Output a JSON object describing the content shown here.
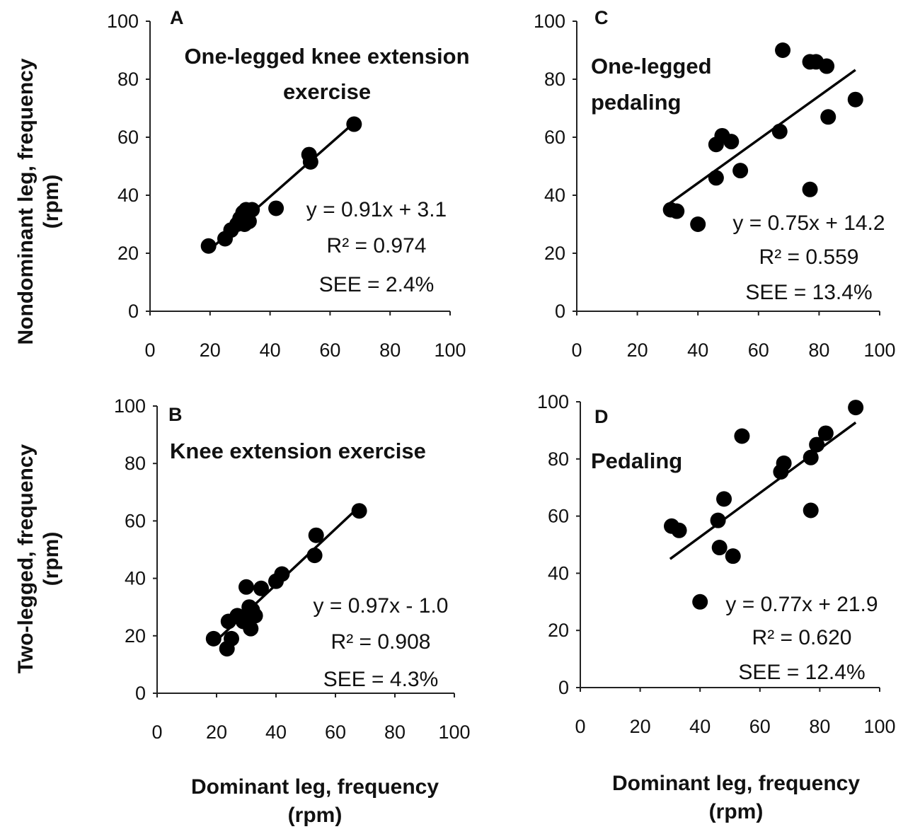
{
  "figure": {
    "y_label_top": [
      "Nondominant  leg, frequency",
      "(rpm)"
    ],
    "y_label_bottom": [
      "Two-legged, frequency",
      "(rpm)"
    ],
    "x_label_bottom_left": [
      "Dominant leg, frequency",
      "(rpm)"
    ],
    "x_label_bottom_right": [
      "Dominant leg, frequency",
      "(rpm)"
    ]
  },
  "chart_data": [
    {
      "id": "A",
      "type": "scatter",
      "letter": "A",
      "title": [
        "One-legged knee extension",
        "exercise"
      ],
      "xlim": [
        0,
        100
      ],
      "ylim": [
        0,
        100
      ],
      "xticks": [
        0,
        20,
        40,
        60,
        80,
        100
      ],
      "yticks": [
        0,
        20,
        40,
        60,
        80,
        100
      ],
      "equation": "y = 0.91x + 3.1",
      "r2": "R² = 0.974",
      "see": "SEE = 2.4%",
      "fit": {
        "slope": 0.91,
        "intercept": 3.1,
        "x_range": [
          20,
          68
        ]
      },
      "points": [
        [
          19.5,
          22.5
        ],
        [
          25,
          25
        ],
        [
          27,
          28
        ],
        [
          29,
          30
        ],
        [
          30,
          32
        ],
        [
          31,
          34
        ],
        [
          31.5,
          30
        ],
        [
          32,
          35
        ],
        [
          33,
          31
        ],
        [
          34,
          35
        ],
        [
          42,
          35.5
        ],
        [
          53,
          54
        ],
        [
          53.5,
          51.5
        ],
        [
          68,
          64.5
        ]
      ]
    },
    {
      "id": "B",
      "type": "scatter",
      "letter": "B",
      "title": [
        "Knee extension exercise"
      ],
      "xlim": [
        0,
        100
      ],
      "ylim": [
        0,
        100
      ],
      "xticks": [
        0,
        20,
        40,
        60,
        80,
        100
      ],
      "yticks": [
        0,
        20,
        40,
        60,
        80,
        100
      ],
      "equation": "y = 0.97x - 1.0",
      "r2": "R² = 0.908",
      "see": "SEE = 4.3%",
      "fit": {
        "slope": 0.97,
        "intercept": -1.0,
        "x_range": [
          20,
          68
        ]
      },
      "points": [
        [
          19,
          19
        ],
        [
          23.5,
          15.5
        ],
        [
          24,
          25
        ],
        [
          25,
          19
        ],
        [
          27,
          27
        ],
        [
          29,
          25
        ],
        [
          30,
          37
        ],
        [
          31,
          30
        ],
        [
          31.5,
          22.5
        ],
        [
          32,
          29
        ],
        [
          33,
          27
        ],
        [
          35,
          36.5
        ],
        [
          40,
          39
        ],
        [
          42,
          41.5
        ],
        [
          53,
          48
        ],
        [
          53.5,
          55
        ],
        [
          68,
          63.5
        ]
      ]
    },
    {
      "id": "C",
      "type": "scatter",
      "letter": "C",
      "title": [
        "One-legged",
        "pedaling"
      ],
      "xlim": [
        0,
        100
      ],
      "ylim": [
        0,
        100
      ],
      "xticks": [
        0,
        20,
        40,
        60,
        80,
        100
      ],
      "yticks": [
        0,
        20,
        40,
        60,
        80,
        100
      ],
      "equation": "y = 0.75x + 14.2",
      "r2": "R² = 0.559",
      "see": "SEE = 13.4%",
      "fit": {
        "slope": 0.75,
        "intercept": 14.2,
        "x_range": [
          30,
          92
        ]
      },
      "points": [
        [
          31,
          35
        ],
        [
          33,
          34.5
        ],
        [
          40,
          30
        ],
        [
          46,
          46
        ],
        [
          46,
          57.5
        ],
        [
          48,
          60.5
        ],
        [
          51,
          58.5
        ],
        [
          54,
          48.5
        ],
        [
          67,
          62
        ],
        [
          68,
          90
        ],
        [
          77,
          86
        ],
        [
          77,
          42
        ],
        [
          79,
          86
        ],
        [
          82.5,
          84.5
        ],
        [
          83,
          67
        ],
        [
          92,
          73
        ]
      ]
    },
    {
      "id": "D",
      "type": "scatter",
      "letter": "D",
      "title": [
        "Pedaling"
      ],
      "xlim": [
        0,
        100
      ],
      "ylim": [
        0,
        100
      ],
      "xticks": [
        0,
        20,
        40,
        60,
        80,
        100
      ],
      "yticks": [
        0,
        20,
        40,
        60,
        80,
        100
      ],
      "equation": "y = 0.77x + 21.9",
      "r2": "R² = 0.620",
      "see": "SEE = 12.4%",
      "fit": {
        "slope": 0.77,
        "intercept": 21.9,
        "x_range": [
          30,
          92
        ]
      },
      "points": [
        [
          30.5,
          56.5
        ],
        [
          33,
          55
        ],
        [
          40,
          30
        ],
        [
          46,
          58.5
        ],
        [
          46.5,
          49
        ],
        [
          48,
          66
        ],
        [
          51,
          46
        ],
        [
          54,
          88
        ],
        [
          67,
          75.5
        ],
        [
          68,
          78.5
        ],
        [
          77,
          80.5
        ],
        [
          77,
          62
        ],
        [
          79,
          85
        ],
        [
          82,
          89
        ],
        [
          92,
          98
        ]
      ]
    }
  ]
}
